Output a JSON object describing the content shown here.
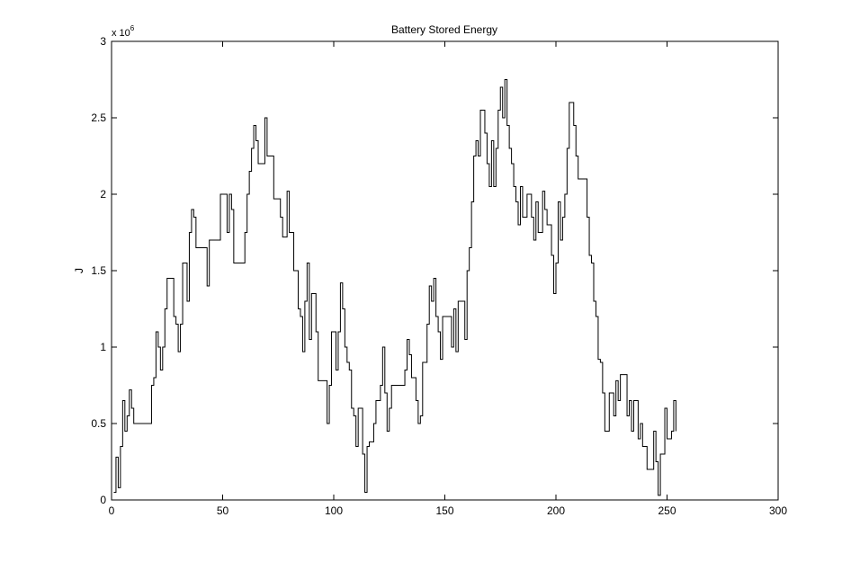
{
  "chart_data": {
    "type": "line",
    "title": "Battery Stored Energy",
    "xlabel": "",
    "ylabel": "J",
    "y_multiplier_base": "x 10",
    "y_multiplier_exp": "6",
    "xlim": [
      0,
      300
    ],
    "ylim": [
      0,
      3
    ],
    "x_ticks": [
      0,
      50,
      100,
      150,
      200,
      250,
      300
    ],
    "y_ticks": [
      0,
      0.5,
      1,
      1.5,
      2,
      2.5,
      3
    ],
    "grid": false,
    "step": true,
    "series": [
      {
        "values": [
          0.05,
          0.28,
          0.08,
          0.35,
          0.65,
          0.45,
          0.55,
          0.72,
          0.6,
          0.5,
          0.5,
          0.5,
          0.5,
          0.5,
          0.5,
          0.5,
          0.5,
          0.75,
          0.8,
          1.1,
          1.0,
          0.85,
          1.0,
          1.25,
          1.45,
          1.45,
          1.45,
          1.2,
          1.15,
          0.97,
          1.15,
          1.55,
          1.55,
          1.3,
          1.75,
          1.9,
          1.85,
          1.65,
          1.65,
          1.65,
          1.65,
          1.65,
          1.4,
          1.7,
          1.7,
          1.7,
          1.7,
          1.7,
          2.0,
          2.0,
          2.0,
          1.75,
          2.0,
          1.9,
          1.55,
          1.55,
          1.55,
          1.55,
          1.55,
          1.75,
          2.0,
          2.15,
          2.3,
          2.45,
          2.35,
          2.2,
          2.2,
          2.2,
          2.5,
          2.25,
          2.25,
          2.25,
          1.97,
          1.97,
          1.97,
          1.85,
          1.72,
          1.72,
          2.02,
          1.75,
          1.75,
          1.5,
          1.5,
          1.25,
          1.2,
          0.97,
          1.3,
          1.55,
          1.05,
          1.35,
          1.35,
          1.1,
          0.78,
          0.78,
          0.78,
          0.78,
          0.5,
          0.75,
          1.1,
          1.1,
          0.85,
          1.1,
          1.42,
          1.25,
          1.0,
          0.9,
          0.85,
          0.6,
          0.55,
          0.35,
          0.6,
          0.6,
          0.3,
          0.05,
          0.35,
          0.38,
          0.38,
          0.5,
          0.65,
          0.65,
          0.75,
          1.0,
          0.7,
          0.45,
          0.6,
          0.75,
          0.75,
          0.75,
          0.75,
          0.75,
          0.75,
          0.85,
          1.05,
          0.95,
          0.8,
          0.8,
          0.65,
          0.5,
          0.55,
          0.9,
          0.9,
          1.15,
          1.4,
          1.3,
          1.45,
          1.2,
          1.1,
          0.92,
          1.2,
          1.2,
          1.2,
          1.2,
          1.0,
          1.25,
          0.97,
          1.3,
          1.3,
          1.3,
          1.05,
          1.5,
          1.65,
          1.95,
          2.25,
          2.35,
          2.25,
          2.55,
          2.55,
          2.4,
          2.2,
          2.05,
          2.35,
          2.05,
          2.3,
          2.55,
          2.7,
          2.5,
          2.75,
          2.45,
          2.3,
          2.2,
          2.05,
          1.95,
          1.8,
          2.05,
          1.85,
          1.85,
          2.0,
          2.0,
          1.85,
          1.7,
          1.95,
          1.75,
          1.75,
          2.02,
          1.9,
          1.8,
          1.8,
          1.6,
          1.35,
          1.55,
          1.95,
          1.7,
          1.85,
          2.0,
          2.3,
          2.6,
          2.6,
          2.45,
          2.25,
          2.1,
          2.1,
          2.1,
          2.1,
          1.85,
          1.6,
          1.55,
          1.3,
          1.2,
          0.92,
          0.9,
          0.7,
          0.45,
          0.45,
          0.7,
          0.7,
          0.55,
          0.78,
          0.65,
          0.82,
          0.82,
          0.82,
          0.55,
          0.65,
          0.45,
          0.65,
          0.65,
          0.4,
          0.5,
          0.35,
          0.35,
          0.2,
          0.2,
          0.2,
          0.45,
          0.25,
          0.03,
          0.3,
          0.3,
          0.6,
          0.4,
          0.4,
          0.45,
          0.65,
          0.45
        ]
      }
    ]
  }
}
